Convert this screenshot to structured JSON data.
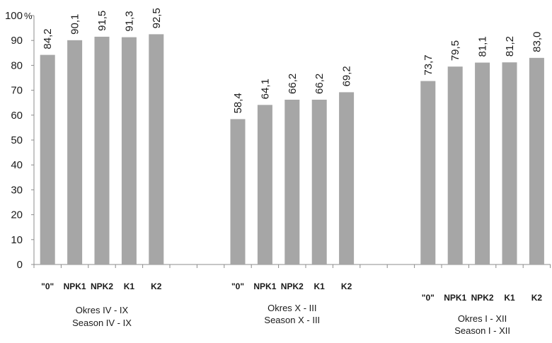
{
  "chart_data": {
    "type": "bar",
    "ylim": [
      0,
      100
    ],
    "yticks": [
      0,
      10,
      20,
      30,
      40,
      50,
      60,
      70,
      80,
      90,
      100
    ],
    "y_unit": "%",
    "bar_color": "#a6a6a6",
    "grid": false,
    "groups": [
      {
        "label_line1": "Okres IV - IX",
        "label_line2": "Season IV - IX",
        "categories": [
          "\"0\"",
          "NPK1",
          "NPK2",
          "K1",
          "K2"
        ],
        "values": [
          84.2,
          90.1,
          91.5,
          91.3,
          92.5
        ],
        "value_labels": [
          "84,2",
          "90,1",
          "91,5",
          "91,3",
          "92,5"
        ]
      },
      {
        "label_line1": "Okres X - III",
        "label_line2": "Season X - III",
        "categories": [
          "\"0\"",
          "NPK1",
          "NPK2",
          "K1",
          "K2"
        ],
        "values": [
          58.4,
          64.1,
          66.2,
          66.2,
          69.2
        ],
        "value_labels": [
          "58,4",
          "64,1",
          "66,2",
          "66,2",
          "69,2"
        ]
      },
      {
        "label_line1": "Okres I - XII",
        "label_line2": "Season I - XII",
        "categories": [
          "\"0\"",
          "NPK1",
          "NPK2",
          "K1",
          "K2"
        ],
        "values": [
          73.7,
          79.5,
          81.1,
          81.2,
          83.0
        ],
        "value_labels": [
          "73,7",
          "79,5",
          "81,1",
          "81,2",
          "83,0"
        ]
      }
    ]
  }
}
